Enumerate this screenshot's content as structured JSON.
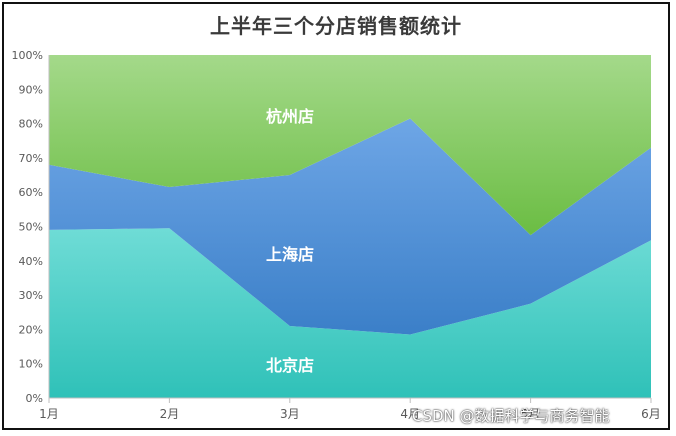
{
  "chart_data": {
    "type": "area",
    "stacked_percent": true,
    "title": "上半年三个分店销售额统计",
    "categories": [
      "1月",
      "2月",
      "3月",
      "4月",
      "5月",
      "6月"
    ],
    "yticks": [
      "0%",
      "10%",
      "20%",
      "30%",
      "40%",
      "50%",
      "60%",
      "70%",
      "80%",
      "90%",
      "100%"
    ],
    "ylim": [
      0,
      100
    ],
    "series": [
      {
        "name": "北京店",
        "values": [
          49,
          49.5,
          21,
          18.5,
          27.5,
          46
        ],
        "color": "#3ec8c0"
      },
      {
        "name": "上海店",
        "values": [
          19,
          12,
          44,
          63,
          20,
          27
        ],
        "color": "#4a8fd6"
      },
      {
        "name": "杭州店",
        "values": [
          32,
          38.5,
          35,
          18.5,
          52.5,
          27
        ],
        "color": "#78c452"
      }
    ],
    "grid": false,
    "legend": "labels inside areas"
  },
  "watermark": "CSDN @数据科学与商务智能"
}
